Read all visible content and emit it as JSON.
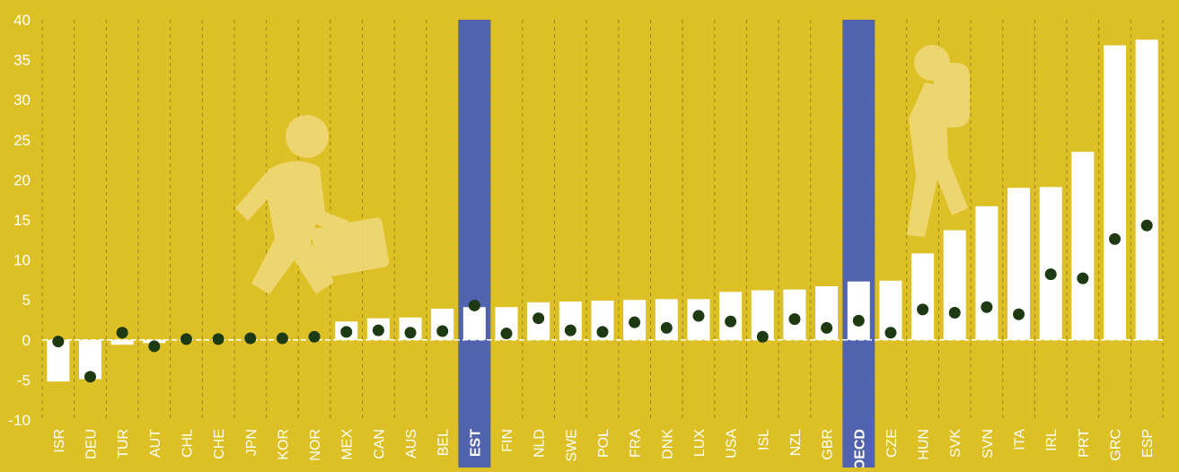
{
  "chart_data": {
    "type": "bar",
    "title": "",
    "xlabel": "",
    "ylabel": "",
    "ylim": [
      -10,
      40
    ],
    "yticks": [
      -10,
      -5,
      0,
      5,
      10,
      15,
      20,
      25,
      30,
      35,
      40
    ],
    "grid": "vertical dashed",
    "categories": [
      "ISR",
      "DEU",
      "TUR",
      "AUT",
      "CHL",
      "CHE",
      "JPN",
      "KOR",
      "NOR",
      "MEX",
      "CAN",
      "AUS",
      "BEL",
      "EST",
      "FIN",
      "NLD",
      "SWE",
      "POL",
      "FRA",
      "DNK",
      "LUX",
      "USA",
      "ISL",
      "NZL",
      "GBR",
      "OECD",
      "CZE",
      "HUN",
      "SVK",
      "SVN",
      "ITA",
      "IRL",
      "PRT",
      "GRC",
      "ESP"
    ],
    "highlight": [
      "EST",
      "OECD"
    ],
    "series": [
      {
        "type": "bar",
        "values": [
          -5.2,
          -4.9,
          -0.6,
          -0.4,
          0,
          0,
          0,
          0,
          0,
          2.3,
          2.7,
          2.8,
          3.9,
          4.1,
          4.1,
          4.7,
          4.8,
          4.9,
          5.0,
          5.1,
          5.1,
          6.0,
          6.2,
          6.3,
          6.7,
          7.3,
          7.4,
          10.8,
          13.7,
          16.7,
          19.0,
          19.1,
          23.5,
          36.8,
          37.5
        ]
      },
      {
        "type": "scatter",
        "values": [
          -0.2,
          -4.6,
          0.9,
          -0.8,
          0.1,
          0.1,
          0.2,
          0.2,
          0.4,
          1.0,
          1.2,
          0.9,
          1.1,
          4.3,
          0.8,
          2.7,
          1.2,
          1.0,
          2.2,
          1.5,
          3.0,
          2.3,
          0.4,
          2.6,
          1.5,
          2.4,
          0.9,
          3.8,
          3.4,
          4.1,
          3.2,
          8.2,
          7.7,
          12.6,
          14.3
        ]
      }
    ],
    "colors": {
      "background": "#ddc025",
      "bar": "#ffffff",
      "highlight": "#5163ae",
      "dot": "#1e3a12",
      "axis_text": "#ffffff",
      "grid": "#9c8418",
      "illustration": "#efd878"
    }
  }
}
